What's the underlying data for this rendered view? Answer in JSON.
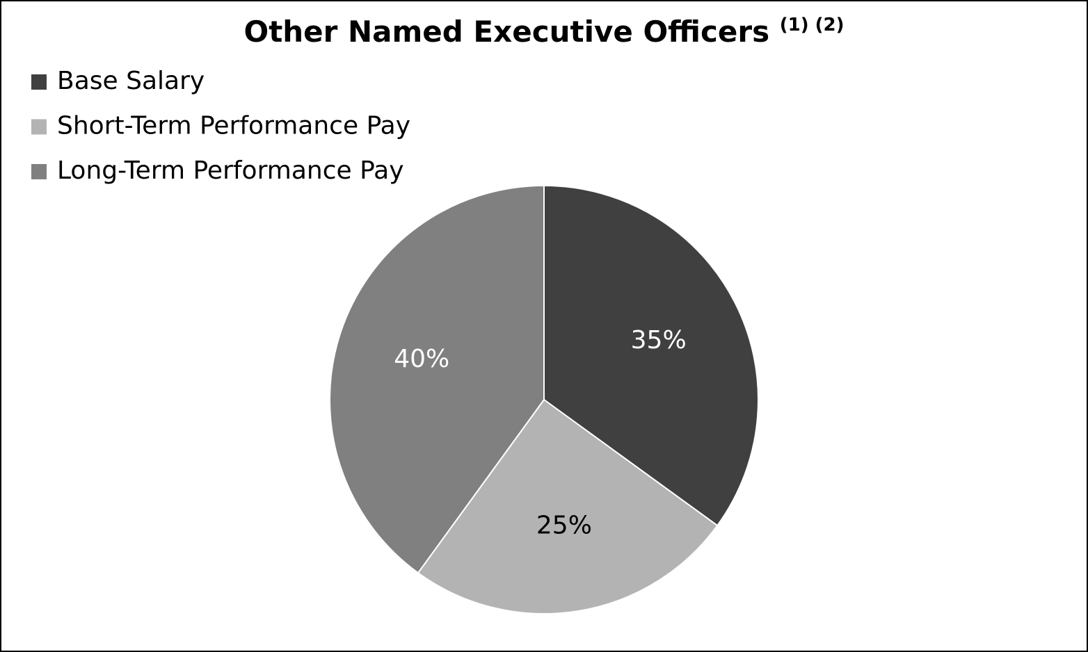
{
  "chart_data": {
    "type": "pie",
    "title": "Other Named Executive Officers",
    "title_notes": "(1) (2)",
    "categories": [
      "Base Salary",
      "Short-Term Performance Pay",
      "Long-Term Performance Pay"
    ],
    "values": [
      35,
      25,
      40
    ],
    "value_labels": [
      "35%",
      "25%",
      "40%"
    ],
    "colors": [
      "#404040",
      "#b3b3b3",
      "#808080"
    ],
    "legend": "top-left"
  }
}
